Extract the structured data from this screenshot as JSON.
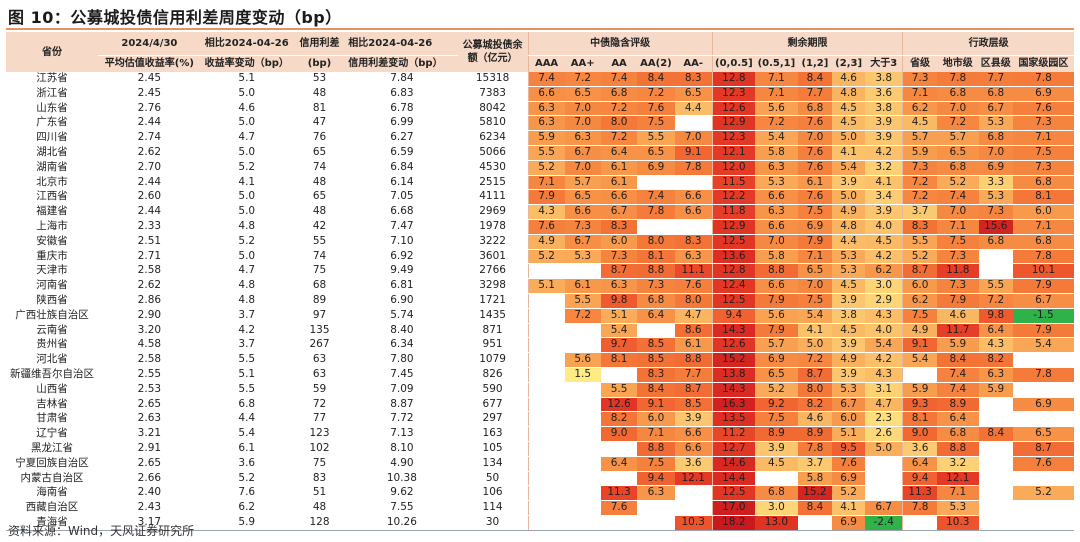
{
  "title": "图 10：公募城投债信用利差周度变动（bp）",
  "source": "资料来源：Wind，天风证券研究所",
  "header": {
    "province": "省份",
    "date_top": "2024/4/30",
    "date_sub": "平均估值收益率(%)",
    "chg_yield_top": "相比2024-04-26",
    "chg_yield_sub": "收益率变动（bp）",
    "spread_top": "信用利差",
    "spread_sub": "(bp)",
    "chg_spread_top": "相比2024-04-26",
    "chg_spread_sub": "信用利差变动（bp）",
    "balance_top": "公募城投债余",
    "balance_sub": "额（亿元）",
    "group_rating": "中债隐含评级",
    "group_term": "剩余期限",
    "group_admin": "行政层级",
    "rating_cols": [
      "AAA",
      "AA+",
      "AA",
      "AA(2)",
      "AA-"
    ],
    "term_cols": [
      "(0,0.5]",
      "(0.5,1]",
      "(1,2]",
      "(2,3]",
      "大于3"
    ],
    "admin_cols": [
      "省级",
      "地市级",
      "区县级",
      "国家级园区"
    ]
  },
  "rows": [
    {
      "province": "江苏省",
      "yield": "2.45",
      "chg_yield": "5.1",
      "spread": "53",
      "chg_spread": "7.84",
      "balance": "15318",
      "rating": [
        "7.4",
        "7.2",
        "7.4",
        "8.4",
        "8.3"
      ],
      "term": [
        "12.8",
        "7.1",
        "8.4",
        "4.6",
        "3.8"
      ],
      "admin": [
        "7.3",
        "7.8",
        "7.7",
        "7.8"
      ]
    },
    {
      "province": "浙江省",
      "yield": "2.45",
      "chg_yield": "5.0",
      "spread": "48",
      "chg_spread": "6.83",
      "balance": "7383",
      "rating": [
        "6.6",
        "6.5",
        "6.8",
        "7.2",
        "6.5"
      ],
      "term": [
        "12.3",
        "7.1",
        "7.7",
        "4.8",
        "3.6"
      ],
      "admin": [
        "7.1",
        "6.8",
        "6.8",
        "6.9"
      ]
    },
    {
      "province": "山东省",
      "yield": "2.76",
      "chg_yield": "4.6",
      "spread": "81",
      "chg_spread": "6.78",
      "balance": "8042",
      "rating": [
        "6.3",
        "7.0",
        "7.2",
        "7.6",
        "4.4"
      ],
      "term": [
        "12.6",
        "5.6",
        "6.8",
        "4.5",
        "3.8"
      ],
      "admin": [
        "6.2",
        "7.0",
        "6.7",
        "7.6"
      ]
    },
    {
      "province": "广东省",
      "yield": "2.44",
      "chg_yield": "5.0",
      "spread": "47",
      "chg_spread": "6.99",
      "balance": "5810",
      "rating": [
        "6.3",
        "7.0",
        "8.0",
        "7.5",
        ""
      ],
      "term": [
        "12.9",
        "7.2",
        "7.6",
        "4.5",
        "3.9"
      ],
      "admin": [
        "4.5",
        "7.2",
        "5.3",
        "7.3"
      ]
    },
    {
      "province": "四川省",
      "yield": "2.74",
      "chg_yield": "4.7",
      "spread": "76",
      "chg_spread": "6.27",
      "balance": "6234",
      "rating": [
        "5.9",
        "6.3",
        "7.2",
        "5.5",
        "7.0"
      ],
      "term": [
        "12.3",
        "5.4",
        "7.0",
        "5.0",
        "3.9"
      ],
      "admin": [
        "5.7",
        "5.7",
        "6.8",
        "7.1"
      ]
    },
    {
      "province": "湖北省",
      "yield": "2.62",
      "chg_yield": "5.0",
      "spread": "65",
      "chg_spread": "6.59",
      "balance": "5066",
      "rating": [
        "5.5",
        "6.7",
        "6.4",
        "6.5",
        "9.1"
      ],
      "term": [
        "12.1",
        "5.8",
        "7.6",
        "4.1",
        "4.2"
      ],
      "admin": [
        "5.9",
        "6.5",
        "7.0",
        "7.5"
      ]
    },
    {
      "province": "湖南省",
      "yield": "2.70",
      "chg_yield": "5.2",
      "spread": "74",
      "chg_spread": "6.84",
      "balance": "4530",
      "rating": [
        "5.2",
        "7.0",
        "6.1",
        "6.9",
        "7.8"
      ],
      "term": [
        "12.0",
        "6.3",
        "7.6",
        "5.4",
        "3.2"
      ],
      "admin": [
        "7.3",
        "6.8",
        "6.9",
        "7.3"
      ]
    },
    {
      "province": "北京市",
      "yield": "2.44",
      "chg_yield": "4.1",
      "spread": "48",
      "chg_spread": "6.14",
      "balance": "2515",
      "rating": [
        "7.1",
        "5.7",
        "6.1",
        "",
        ""
      ],
      "term": [
        "11.5",
        "5.3",
        "6.1",
        "3.9",
        "4.1"
      ],
      "admin": [
        "7.2",
        "5.2",
        "3.3",
        "6.8"
      ]
    },
    {
      "province": "江西省",
      "yield": "2.60",
      "chg_yield": "5.0",
      "spread": "65",
      "chg_spread": "7.05",
      "balance": "4111",
      "rating": [
        "7.9",
        "6.5",
        "6.6",
        "7.4",
        "6.6"
      ],
      "term": [
        "12.2",
        "6.6",
        "7.6",
        "5.0",
        "3.4"
      ],
      "admin": [
        "7.2",
        "7.4",
        "5.3",
        "8.1"
      ]
    },
    {
      "province": "福建省",
      "yield": "2.44",
      "chg_yield": "5.0",
      "spread": "48",
      "chg_spread": "6.68",
      "balance": "2969",
      "rating": [
        "4.3",
        "6.6",
        "6.7",
        "7.8",
        "6.6"
      ],
      "term": [
        "11.8",
        "6.3",
        "7.5",
        "4.9",
        "3.9"
      ],
      "admin": [
        "3.7",
        "7.0",
        "7.3",
        "6.0"
      ]
    },
    {
      "province": "上海市",
      "yield": "2.33",
      "chg_yield": "4.8",
      "spread": "42",
      "chg_spread": "7.47",
      "balance": "1978",
      "rating": [
        "7.6",
        "7.3",
        "8.3",
        "",
        ""
      ],
      "term": [
        "12.9",
        "6.6",
        "6.9",
        "4.8",
        "4.0"
      ],
      "admin": [
        "8.3",
        "7.1",
        "15.6",
        "7.1"
      ]
    },
    {
      "province": "安徽省",
      "yield": "2.51",
      "chg_yield": "5.2",
      "spread": "55",
      "chg_spread": "7.10",
      "balance": "3222",
      "rating": [
        "4.9",
        "6.7",
        "6.0",
        "8.0",
        "8.3"
      ],
      "term": [
        "12.5",
        "7.0",
        "7.9",
        "4.4",
        "4.5"
      ],
      "admin": [
        "5.5",
        "7.5",
        "6.8",
        "6.8"
      ]
    },
    {
      "province": "重庆市",
      "yield": "2.71",
      "chg_yield": "5.0",
      "spread": "74",
      "chg_spread": "6.92",
      "balance": "3601",
      "rating": [
        "5.2",
        "5.3",
        "7.3",
        "8.1",
        "6.3"
      ],
      "term": [
        "13.6",
        "5.8",
        "7.1",
        "5.3",
        "4.2"
      ],
      "admin": [
        "5.2",
        "7.3",
        "",
        "7.8"
      ]
    },
    {
      "province": "天津市",
      "yield": "2.58",
      "chg_yield": "4.7",
      "spread": "75",
      "chg_spread": "9.49",
      "balance": "2766",
      "rating": [
        "",
        "",
        "8.7",
        "8.8",
        "11.1"
      ],
      "term": [
        "12.8",
        "8.8",
        "6.5",
        "5.3",
        "6.2"
      ],
      "admin": [
        "8.7",
        "11.8",
        "",
        "10.1"
      ]
    },
    {
      "province": "河南省",
      "yield": "2.62",
      "chg_yield": "4.8",
      "spread": "68",
      "chg_spread": "6.81",
      "balance": "3298",
      "rating": [
        "5.1",
        "6.1",
        "6.3",
        "7.3",
        "7.6"
      ],
      "term": [
        "12.4",
        "6.6",
        "7.0",
        "4.5",
        "3.0"
      ],
      "admin": [
        "6.0",
        "7.3",
        "5.5",
        "7.9"
      ]
    },
    {
      "province": "陕西省",
      "yield": "2.86",
      "chg_yield": "4.8",
      "spread": "89",
      "chg_spread": "6.90",
      "balance": "1721",
      "rating": [
        "",
        "5.5",
        "9.8",
        "6.8",
        "8.0"
      ],
      "term": [
        "12.5",
        "7.9",
        "7.5",
        "3.9",
        "2.9"
      ],
      "admin": [
        "6.2",
        "7.9",
        "7.2",
        "6.7"
      ]
    },
    {
      "province": "广西壮族自治区",
      "yield": "2.90",
      "chg_yield": "3.7",
      "spread": "97",
      "chg_spread": "5.74",
      "balance": "1435",
      "rating": [
        "",
        "7.2",
        "5.1",
        "6.4",
        "4.7"
      ],
      "term": [
        "9.4",
        "5.6",
        "5.4",
        "3.8",
        "4.3"
      ],
      "admin": [
        "7.5",
        "4.6",
        "9.8",
        "-1.5"
      ]
    },
    {
      "province": "云南省",
      "yield": "3.20",
      "chg_yield": "4.2",
      "spread": "135",
      "chg_spread": "8.40",
      "balance": "871",
      "rating": [
        "",
        "",
        "5.4",
        "",
        "8.6"
      ],
      "term": [
        "14.3",
        "7.9",
        "4.1",
        "4.5",
        "4.0"
      ],
      "admin": [
        "4.9",
        "11.7",
        "6.4",
        "7.9"
      ]
    },
    {
      "province": "贵州省",
      "yield": "4.58",
      "chg_yield": "3.7",
      "spread": "267",
      "chg_spread": "6.34",
      "balance": "951",
      "rating": [
        "",
        "",
        "9.7",
        "8.5",
        "6.1"
      ],
      "term": [
        "12.6",
        "5.7",
        "5.0",
        "3.9",
        "5.4"
      ],
      "admin": [
        "9.1",
        "5.9",
        "4.3",
        "5.4"
      ]
    },
    {
      "province": "河北省",
      "yield": "2.58",
      "chg_yield": "5.5",
      "spread": "63",
      "chg_spread": "7.80",
      "balance": "1079",
      "rating": [
        "",
        "5.6",
        "8.1",
        "8.5",
        "8.8"
      ],
      "term": [
        "15.2",
        "6.9",
        "7.2",
        "4.9",
        "4.2"
      ],
      "admin": [
        "5.4",
        "8.4",
        "8.2",
        ""
      ]
    },
    {
      "province": "新疆维吾尔自治区",
      "yield": "2.55",
      "chg_yield": "5.1",
      "spread": "63",
      "chg_spread": "7.45",
      "balance": "826",
      "rating": [
        "",
        "1.5",
        "",
        "8.3",
        "7.7"
      ],
      "term": [
        "13.8",
        "6.5",
        "8.7",
        "3.9",
        "4.3"
      ],
      "admin": [
        "",
        "7.4",
        "6.3",
        "7.8"
      ]
    },
    {
      "province": "山西省",
      "yield": "2.53",
      "chg_yield": "5.5",
      "spread": "59",
      "chg_spread": "7.09",
      "balance": "590",
      "rating": [
        "",
        "",
        "5.5",
        "8.4",
        "8.7"
      ],
      "term": [
        "14.3",
        "5.2",
        "8.0",
        "5.3",
        "3.1"
      ],
      "admin": [
        "5.9",
        "7.4",
        "5.9",
        ""
      ]
    },
    {
      "province": "吉林省",
      "yield": "2.65",
      "chg_yield": "6.8",
      "spread": "72",
      "chg_spread": "8.87",
      "balance": "677",
      "rating": [
        "",
        "",
        "12.6",
        "9.1",
        "8.5"
      ],
      "term": [
        "16.3",
        "9.2",
        "8.2",
        "6.7",
        "4.7"
      ],
      "admin": [
        "9.3",
        "8.9",
        "",
        "6.9"
      ]
    },
    {
      "province": "甘肃省",
      "yield": "2.63",
      "chg_yield": "4.4",
      "spread": "77",
      "chg_spread": "7.72",
      "balance": "297",
      "rating": [
        "",
        "",
        "8.2",
        "6.0",
        "3.9"
      ],
      "term": [
        "13.5",
        "7.5",
        "4.6",
        "6.0",
        "2.3"
      ],
      "admin": [
        "8.1",
        "6.4",
        "",
        ""
      ]
    },
    {
      "province": "辽宁省",
      "yield": "3.21",
      "chg_yield": "5.4",
      "spread": "123",
      "chg_spread": "7.13",
      "balance": "163",
      "rating": [
        "",
        "",
        "9.0",
        "7.1",
        "6.6"
      ],
      "term": [
        "11.2",
        "8.9",
        "8.9",
        "5.1",
        "2.6"
      ],
      "admin": [
        "9.0",
        "6.8",
        "8.4",
        "6.5"
      ]
    },
    {
      "province": "黑龙江省",
      "yield": "2.91",
      "chg_yield": "6.1",
      "spread": "102",
      "chg_spread": "8.10",
      "balance": "105",
      "rating": [
        "",
        "",
        "",
        "8.8",
        "6.6"
      ],
      "term": [
        "12.7",
        "3.9",
        "7.8",
        "9.5",
        "5.0"
      ],
      "admin": [
        "3.6",
        "8.8",
        "",
        "8.7"
      ]
    },
    {
      "province": "宁夏回族自治区",
      "yield": "2.65",
      "chg_yield": "3.6",
      "spread": "75",
      "chg_spread": "4.90",
      "balance": "134",
      "rating": [
        "",
        "",
        "6.4",
        "7.5",
        "3.6"
      ],
      "term": [
        "14.6",
        "4.5",
        "3.7",
        "7.6",
        ""
      ],
      "admin": [
        "6.4",
        "3.2",
        "",
        "7.6"
      ]
    },
    {
      "province": "内蒙古自治区",
      "yield": "2.66",
      "chg_yield": "5.2",
      "spread": "83",
      "chg_spread": "10.38",
      "balance": "50",
      "rating": [
        "",
        "",
        "",
        "9.4",
        "12.1"
      ],
      "term": [
        "14.4",
        "",
        "5.8",
        "6.9",
        ""
      ],
      "admin": [
        "9.4",
        "12.1",
        "",
        ""
      ]
    },
    {
      "province": "海南省",
      "yield": "2.40",
      "chg_yield": "7.6",
      "spread": "51",
      "chg_spread": "9.62",
      "balance": "106",
      "rating": [
        "",
        "",
        "11.3",
        "6.3",
        ""
      ],
      "term": [
        "12.5",
        "6.8",
        "15.2",
        "5.2",
        ""
      ],
      "admin": [
        "11.3",
        "7.1",
        "",
        "5.2"
      ]
    },
    {
      "province": "西藏自治区",
      "yield": "2.43",
      "chg_yield": "6.2",
      "spread": "48",
      "chg_spread": "7.55",
      "balance": "114",
      "rating": [
        "",
        "",
        "7.6",
        "",
        ""
      ],
      "term": [
        "17.0",
        "3.0",
        "8.4",
        "4.1",
        "6.7"
      ],
      "admin": [
        "7.8",
        "5.3",
        "",
        ""
      ]
    },
    {
      "province": "青海省",
      "yield": "3.17",
      "chg_yield": "5.9",
      "spread": "128",
      "chg_spread": "10.26",
      "balance": "30",
      "rating": [
        "",
        "",
        "",
        "",
        "10.3"
      ],
      "term": [
        "18.2",
        "13.0",
        "",
        "6.9",
        "-2.4"
      ],
      "admin": [
        "",
        "10.3",
        "",
        ""
      ]
    }
  ]
}
